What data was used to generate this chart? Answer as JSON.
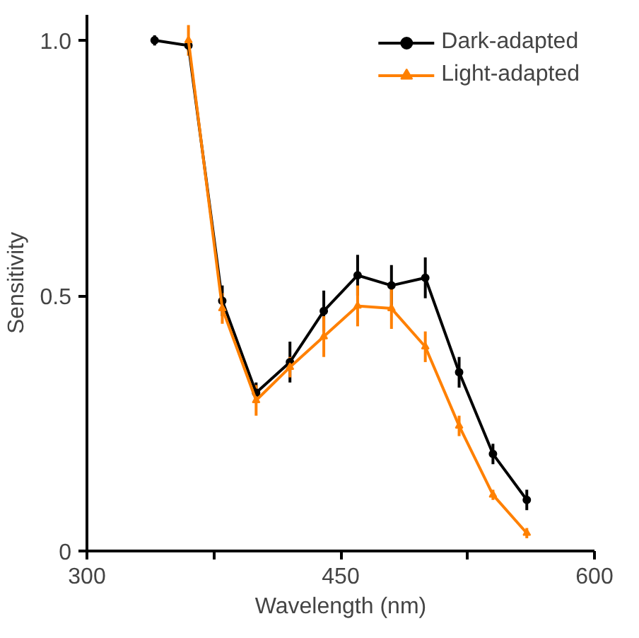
{
  "chart_data": {
    "type": "line",
    "xlabel": "Wavelength (nm)",
    "ylabel": "Sensitivity",
    "xlim": [
      300,
      600
    ],
    "xticks": [
      300,
      {
        "value": 375,
        "label": null
      },
      450,
      {
        "value": 525,
        "label": null
      },
      600
    ],
    "ylim": [
      0,
      1.05
    ],
    "yticks": [
      {
        "value": 0,
        "label": "0"
      },
      0.5,
      {
        "value": 1.0,
        "label": "1.0"
      }
    ],
    "grid": false,
    "legend": "top right",
    "line_style": "solid",
    "series": [
      {
        "name": "Dark-adapted",
        "color": "#000000",
        "marker": "circle",
        "x": [
          340,
          360,
          380,
          400,
          420,
          440,
          460,
          480,
          500,
          520,
          540,
          560
        ],
        "values": [
          1.0,
          0.99,
          0.49,
          0.31,
          0.37,
          0.47,
          0.54,
          0.52,
          0.535,
          0.35,
          0.19,
          0.1
        ],
        "errors": [
          0.01,
          0.01,
          0.03,
          0.02,
          0.04,
          0.04,
          0.04,
          0.04,
          0.04,
          0.03,
          0.02,
          0.02
        ]
      },
      {
        "name": "Light-adapted",
        "color": "#ff8000",
        "marker": "triangle",
        "x": [
          360,
          380,
          400,
          420,
          440,
          460,
          480,
          500,
          520,
          540,
          560
        ],
        "values": [
          1.0,
          0.475,
          0.295,
          0.36,
          0.42,
          0.48,
          0.475,
          0.4,
          0.245,
          0.11,
          0.035
        ],
        "errors": [
          0.03,
          0.03,
          0.03,
          0.02,
          0.04,
          0.04,
          0.04,
          0.03,
          0.02,
          0.01,
          0.01
        ]
      }
    ]
  }
}
